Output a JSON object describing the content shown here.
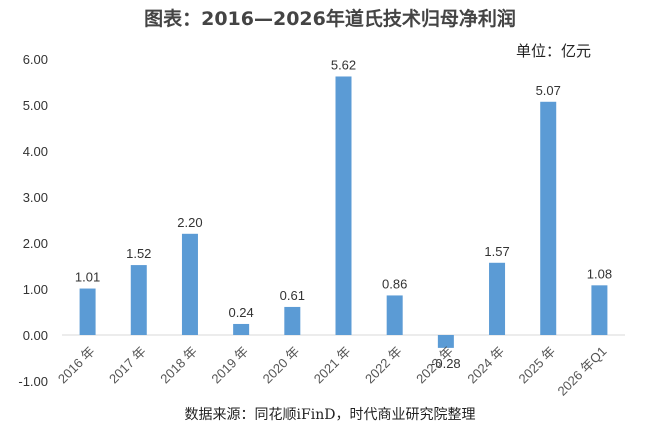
{
  "title": "图表：2016—2026年道氏技术归母净利润",
  "unit": "单位：亿元",
  "source": "数据来源：同花顺iFinD，时代商业研究院整理",
  "chart_data": {
    "type": "bar",
    "categories": [
      "2016 年",
      "2017 年",
      "2018 年",
      "2019 年",
      "2020 年",
      "2021 年",
      "2022 年",
      "2023 年",
      "2024 年",
      "2025 年",
      "2026 年Q1"
    ],
    "values": [
      1.01,
      1.52,
      2.2,
      0.24,
      0.61,
      5.62,
      0.86,
      -0.28,
      1.57,
      5.07,
      1.08
    ],
    "data_labels": [
      "1.01",
      "1.52",
      "2.20",
      "0.24",
      "0.61",
      "5.62",
      "0.86",
      "-0.28",
      "1.57",
      "5.07",
      "1.08"
    ],
    "ylim": [
      -1.0,
      6.0
    ],
    "yticks": [
      "6.00",
      "5.00",
      "4.00",
      "3.00",
      "2.00",
      "1.00",
      "0.00",
      "-1.00"
    ],
    "ytick_values": [
      6,
      5,
      4,
      3,
      2,
      1,
      0,
      -1
    ],
    "bar_color": "#5b9bd5",
    "grid": false,
    "legend": "none"
  }
}
